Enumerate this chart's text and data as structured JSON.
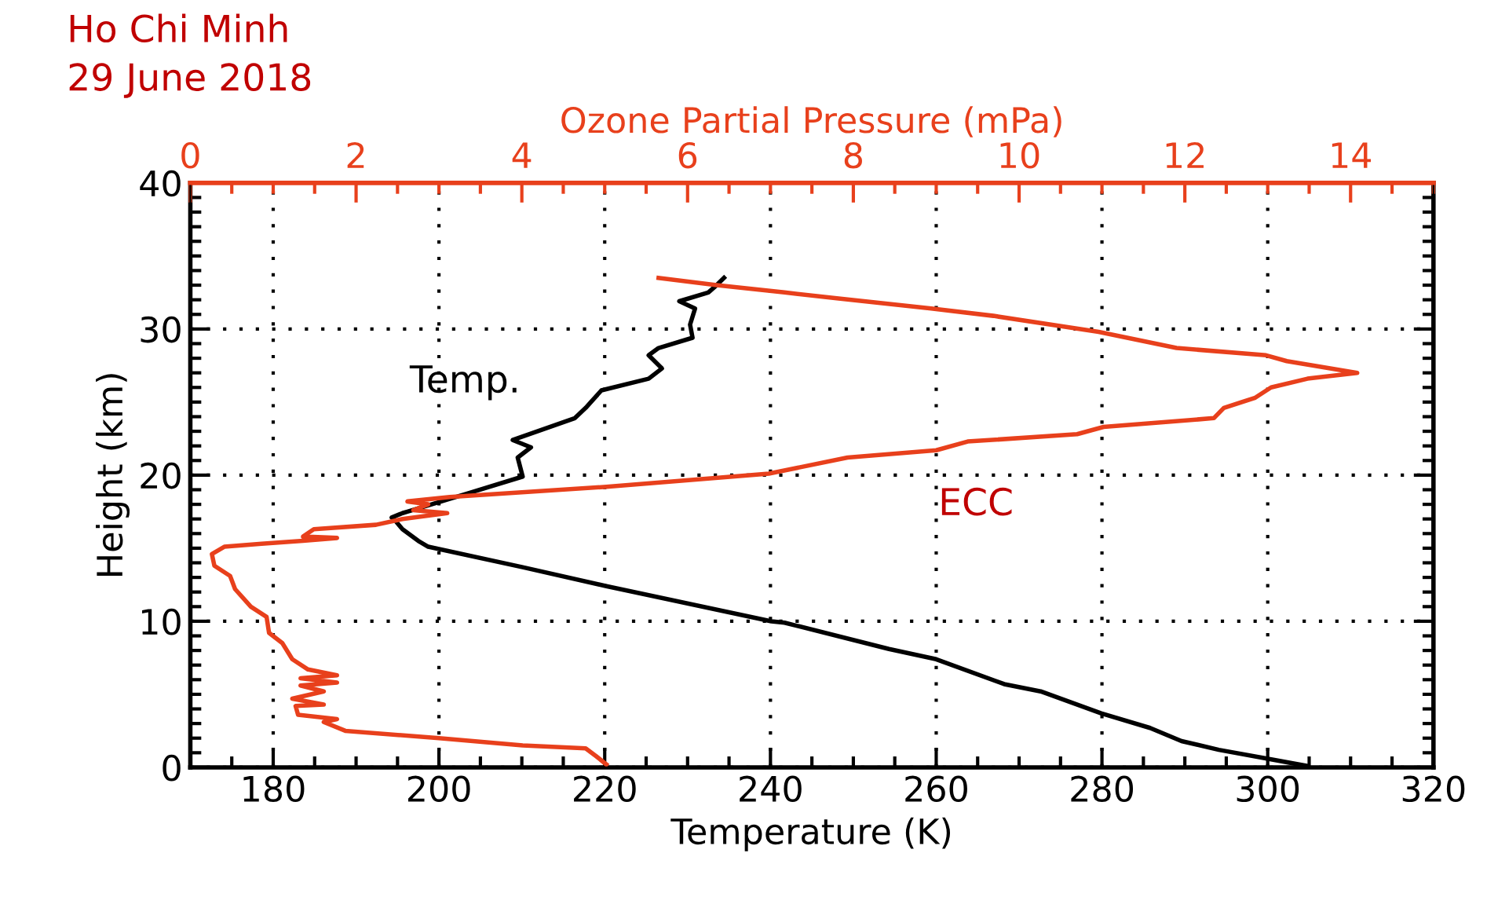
{
  "chart_data": {
    "type": "line",
    "title": "Ho Chi Minh\n29 June 2018",
    "xlabel": "Temperature (K)",
    "x2label": "Ozone Partial Pressure (mPa)",
    "ylabel": "Height (km)",
    "xlim": [
      170,
      320
    ],
    "xticks": [
      180,
      200,
      220,
      240,
      260,
      280,
      300,
      320
    ],
    "x2lim": [
      0,
      15
    ],
    "x2ticks": [
      0,
      2,
      4,
      6,
      8,
      10,
      12,
      14
    ],
    "ylim": [
      0,
      40
    ],
    "yticks": [
      0,
      10,
      20,
      30,
      40
    ],
    "grid": true,
    "legend": false,
    "line_style": "solid",
    "marker": "none",
    "series": [
      {
        "name": "Temp.",
        "color": "#000000",
        "x": [
          304.7,
          299.9,
          294.1,
          289.6,
          285.8,
          279.9,
          272.6,
          268.2,
          260,
          254.3,
          241.7,
          240.1,
          220.2,
          210.1,
          198.7,
          197.5,
          195.6,
          194.7,
          194.3,
          195.6,
          196.2,
          203.8,
          210.1,
          209.5,
          211.1,
          208.9,
          216.4,
          217.7,
          219.6,
          225.3,
          226.9,
          225.3,
          226.5,
          230.6,
          230.3,
          230.9,
          229,
          232.5,
          233.5,
          234.4
        ],
        "values": [
          0.1,
          0.6,
          1.2,
          1.8,
          2.7,
          3.7,
          5.2,
          5.7,
          7.4,
          8.1,
          9.9,
          10,
          12.4,
          13.7,
          15.1,
          15.5,
          16.3,
          16.9,
          17.1,
          17.4,
          17.5,
          18.8,
          19.9,
          21.2,
          21.9,
          22.4,
          23.9,
          24.6,
          25.8,
          26.6,
          27.3,
          28.2,
          28.7,
          29.4,
          30.3,
          31.4,
          31.9,
          32.5,
          33,
          33.5
        ]
      },
      {
        "name": "ECC",
        "color": "#e8401c",
        "axis": "x2",
        "x": [
          5.02,
          4.9,
          4.77,
          4.01,
          3.0,
          1.87,
          1.61,
          1.77,
          1.3,
          1.27,
          1.61,
          1.23,
          1.61,
          1.33,
          1.77,
          1.33,
          1.77,
          1.42,
          1.23,
          1.11,
          0.95,
          0.92,
          0.73,
          0.54,
          0.48,
          0.29,
          0.26,
          0.41,
          0.86,
          1.36,
          1.77,
          1.36,
          1.49,
          2.24,
          2.56,
          3.1,
          2.69,
          2.87,
          2.62,
          3.13,
          5.02,
          6.98,
          7.93,
          9.0,
          9.38,
          10.7,
          11.02,
          12.35,
          12.47,
          12.85,
          13.04,
          13.48,
          14.08,
          13.23,
          12.98,
          11.9,
          10.96,
          9.69,
          8.94,
          7.8,
          7.17,
          6.35,
          5.65
        ],
        "values": [
          0.2,
          0.75,
          1.3,
          1.5,
          2.0,
          2.5,
          3.1,
          3.3,
          3.6,
          4.2,
          4.3,
          4.7,
          5.2,
          5.6,
          5.8,
          6.1,
          6.3,
          6.7,
          7.4,
          8.5,
          9.2,
          10.3,
          11.0,
          12.2,
          13.1,
          13.8,
          14.6,
          15.1,
          15.3,
          15.5,
          15.7,
          15.8,
          16.3,
          16.6,
          17.0,
          17.4,
          17.6,
          18.0,
          18.2,
          18.5,
          19.2,
          20.1,
          21.2,
          21.7,
          22.3,
          22.8,
          23.3,
          23.9,
          24.6,
          25.3,
          26.0,
          26.6,
          27.0,
          27.8,
          28.2,
          28.7,
          29.8,
          30.9,
          31.4,
          32.1,
          32.5,
          33.0,
          33.5
        ]
      }
    ]
  }
}
